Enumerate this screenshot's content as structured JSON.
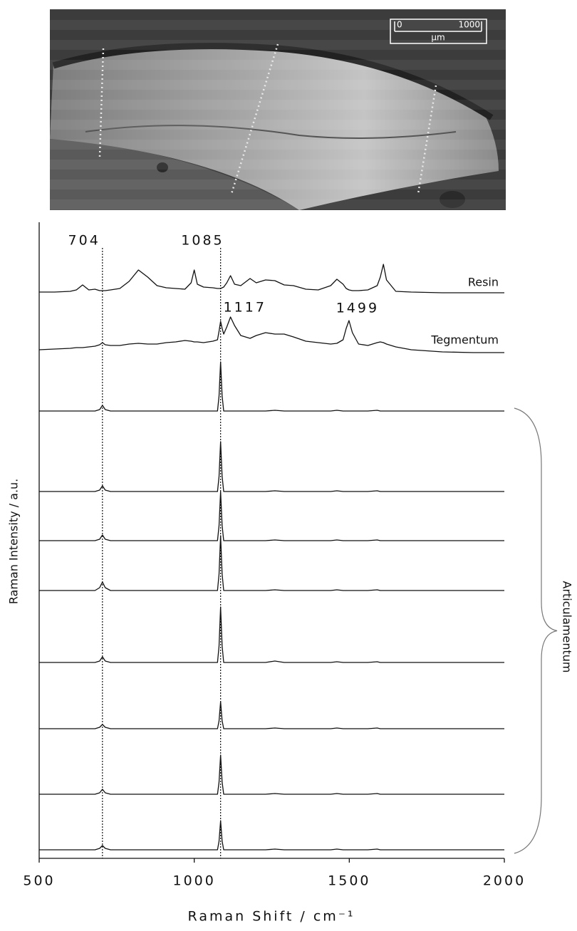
{
  "image": {
    "scale_bar": {
      "ticks": [
        0,
        1000
      ],
      "unit": "µm"
    }
  },
  "chart_data": {
    "type": "line",
    "x_label": "Raman Shift / cm⁻¹",
    "y_label": "Raman Intensity / a.u.",
    "group_label": "Articulamentum",
    "xlim": [
      500,
      2000
    ],
    "xticks": [
      500,
      1000,
      1500,
      2000
    ],
    "x": [
      500,
      550,
      600,
      620,
      640,
      660,
      680,
      695,
      704,
      713,
      730,
      760,
      790,
      820,
      850,
      880,
      910,
      940,
      970,
      990,
      1000,
      1010,
      1030,
      1060,
      1075,
      1080,
      1085,
      1090,
      1095,
      1105,
      1117,
      1130,
      1150,
      1180,
      1200,
      1230,
      1260,
      1290,
      1320,
      1360,
      1400,
      1440,
      1460,
      1480,
      1490,
      1499,
      1510,
      1530,
      1560,
      1590,
      1600,
      1610,
      1620,
      1650,
      1700,
      1800,
      1900,
      2000
    ],
    "peak_labels": [
      {
        "value": 704,
        "line": true
      },
      {
        "value": 1085,
        "line": true
      },
      {
        "value": 1117,
        "line": false
      },
      {
        "value": 1499,
        "line": false
      }
    ],
    "series": [
      {
        "name": "Resin",
        "color": "#111111",
        "values": [
          1,
          1,
          2,
          4,
          11,
          4,
          5,
          3,
          3,
          3,
          4,
          6,
          16,
          32,
          22,
          10,
          7,
          6,
          5,
          14,
          32,
          12,
          8,
          7,
          6,
          6,
          6,
          7,
          8,
          14,
          24,
          12,
          10,
          20,
          14,
          18,
          17,
          11,
          10,
          5,
          4,
          10,
          19,
          12,
          6,
          4,
          3,
          3,
          4,
          10,
          22,
          40,
          18,
          2,
          1,
          0,
          0,
          0
        ]
      },
      {
        "name": "Tegmentum",
        "color": "#111111",
        "values": [
          4,
          5,
          6,
          7,
          7,
          8,
          9,
          11,
          14,
          11,
          10,
          10,
          12,
          13,
          12,
          12,
          14,
          15,
          17,
          16,
          15,
          15,
          14,
          16,
          18,
          30,
          44,
          34,
          26,
          36,
          50,
          38,
          24,
          20,
          24,
          28,
          26,
          26,
          22,
          16,
          14,
          12,
          13,
          18,
          34,
          45,
          28,
          12,
          10,
          14,
          15,
          14,
          12,
          8,
          4,
          1,
          0,
          0
        ]
      },
      {
        "color": "#111111",
        "values": [
          0,
          0,
          0,
          0,
          0,
          0,
          0,
          2,
          8,
          2,
          0,
          0,
          0,
          0,
          0,
          0,
          0,
          0,
          0,
          0,
          0,
          0,
          0,
          0,
          0,
          21,
          69,
          21,
          0,
          0,
          0,
          0,
          0,
          0,
          0,
          0,
          1,
          0,
          0,
          0,
          0,
          0,
          1,
          0,
          0,
          0,
          0,
          0,
          0,
          1,
          0,
          0,
          0,
          0,
          0,
          0,
          0,
          0
        ]
      },
      {
        "color": "#111111",
        "values": [
          0,
          0,
          0,
          0,
          0,
          0,
          0,
          2,
          8,
          2,
          0,
          0,
          0,
          0,
          0,
          0,
          0,
          0,
          0,
          0,
          0,
          0,
          0,
          0,
          0,
          21,
          70,
          21,
          0,
          0,
          0,
          0,
          0,
          0,
          0,
          0,
          1,
          0,
          0,
          0,
          0,
          0,
          1,
          0,
          0,
          0,
          0,
          0,
          0,
          1,
          0,
          0,
          0,
          0,
          0,
          0,
          0,
          0
        ]
      },
      {
        "color": "#111111",
        "values": [
          0,
          0,
          0,
          0,
          0,
          0,
          0,
          2,
          8,
          2,
          0,
          0,
          0,
          0,
          0,
          0,
          0,
          0,
          0,
          0,
          0,
          0,
          0,
          0,
          0,
          21,
          69,
          21,
          0,
          0,
          0,
          0,
          0,
          0,
          0,
          0,
          1,
          0,
          0,
          0,
          0,
          0,
          1,
          0,
          0,
          0,
          0,
          0,
          0,
          1,
          0,
          0,
          0,
          0,
          0,
          0,
          0,
          0
        ]
      },
      {
        "color": "#111111",
        "values": [
          0,
          0,
          0,
          0,
          0,
          0,
          0,
          4,
          12,
          4,
          0,
          0,
          0,
          0,
          0,
          0,
          0,
          0,
          0,
          0,
          0,
          0,
          0,
          0,
          0,
          23,
          77,
          23,
          0,
          0,
          0,
          0,
          0,
          0,
          0,
          0,
          1,
          0,
          0,
          0,
          0,
          0,
          1,
          0,
          0,
          0,
          0,
          0,
          0,
          1,
          0,
          0,
          0,
          0,
          0,
          0,
          0,
          0
        ]
      },
      {
        "color": "#111111",
        "values": [
          0,
          0,
          0,
          0,
          0,
          0,
          0,
          2,
          8,
          2,
          0,
          0,
          0,
          0,
          0,
          0,
          0,
          0,
          0,
          0,
          0,
          0,
          0,
          0,
          0,
          23,
          78,
          23,
          0,
          0,
          0,
          0,
          0,
          0,
          0,
          0,
          2,
          0,
          0,
          0,
          0,
          0,
          1,
          0,
          0,
          0,
          0,
          0,
          0,
          1,
          0,
          0,
          0,
          0,
          0,
          0,
          0,
          0
        ]
      },
      {
        "color": "#111111",
        "values": [
          0,
          0,
          0,
          0,
          0,
          0,
          0,
          2,
          6,
          2,
          0,
          0,
          0,
          0,
          0,
          0,
          0,
          0,
          0,
          0,
          0,
          0,
          0,
          0,
          0,
          11,
          38,
          11,
          0,
          0,
          0,
          0,
          0,
          0,
          0,
          0,
          1,
          0,
          0,
          0,
          0,
          0,
          1,
          0,
          0,
          0,
          0,
          0,
          0,
          1,
          0,
          0,
          0,
          0,
          0,
          0,
          0,
          0
        ]
      },
      {
        "color": "#111111",
        "values": [
          0,
          0,
          0,
          0,
          0,
          0,
          0,
          2,
          7,
          2,
          0,
          0,
          0,
          0,
          0,
          0,
          0,
          0,
          0,
          0,
          0,
          0,
          0,
          0,
          0,
          17,
          55,
          17,
          0,
          0,
          0,
          0,
          0,
          0,
          0,
          0,
          1,
          0,
          0,
          0,
          0,
          0,
          1,
          0,
          0,
          0,
          0,
          0,
          0,
          1,
          0,
          0,
          0,
          0,
          0,
          0,
          0,
          0
        ]
      },
      {
        "color": "#111111",
        "values": [
          0,
          0,
          0,
          0,
          0,
          0,
          0,
          2,
          6,
          2,
          0,
          0,
          0,
          0,
          0,
          0,
          0,
          0,
          0,
          0,
          0,
          0,
          0,
          0,
          0,
          12,
          41,
          12,
          0,
          0,
          0,
          0,
          0,
          0,
          0,
          0,
          1,
          0,
          0,
          0,
          0,
          0,
          1,
          0,
          0,
          0,
          0,
          0,
          0,
          1,
          0,
          0,
          0,
          0,
          0,
          0,
          0,
          0
        ]
      }
    ]
  }
}
